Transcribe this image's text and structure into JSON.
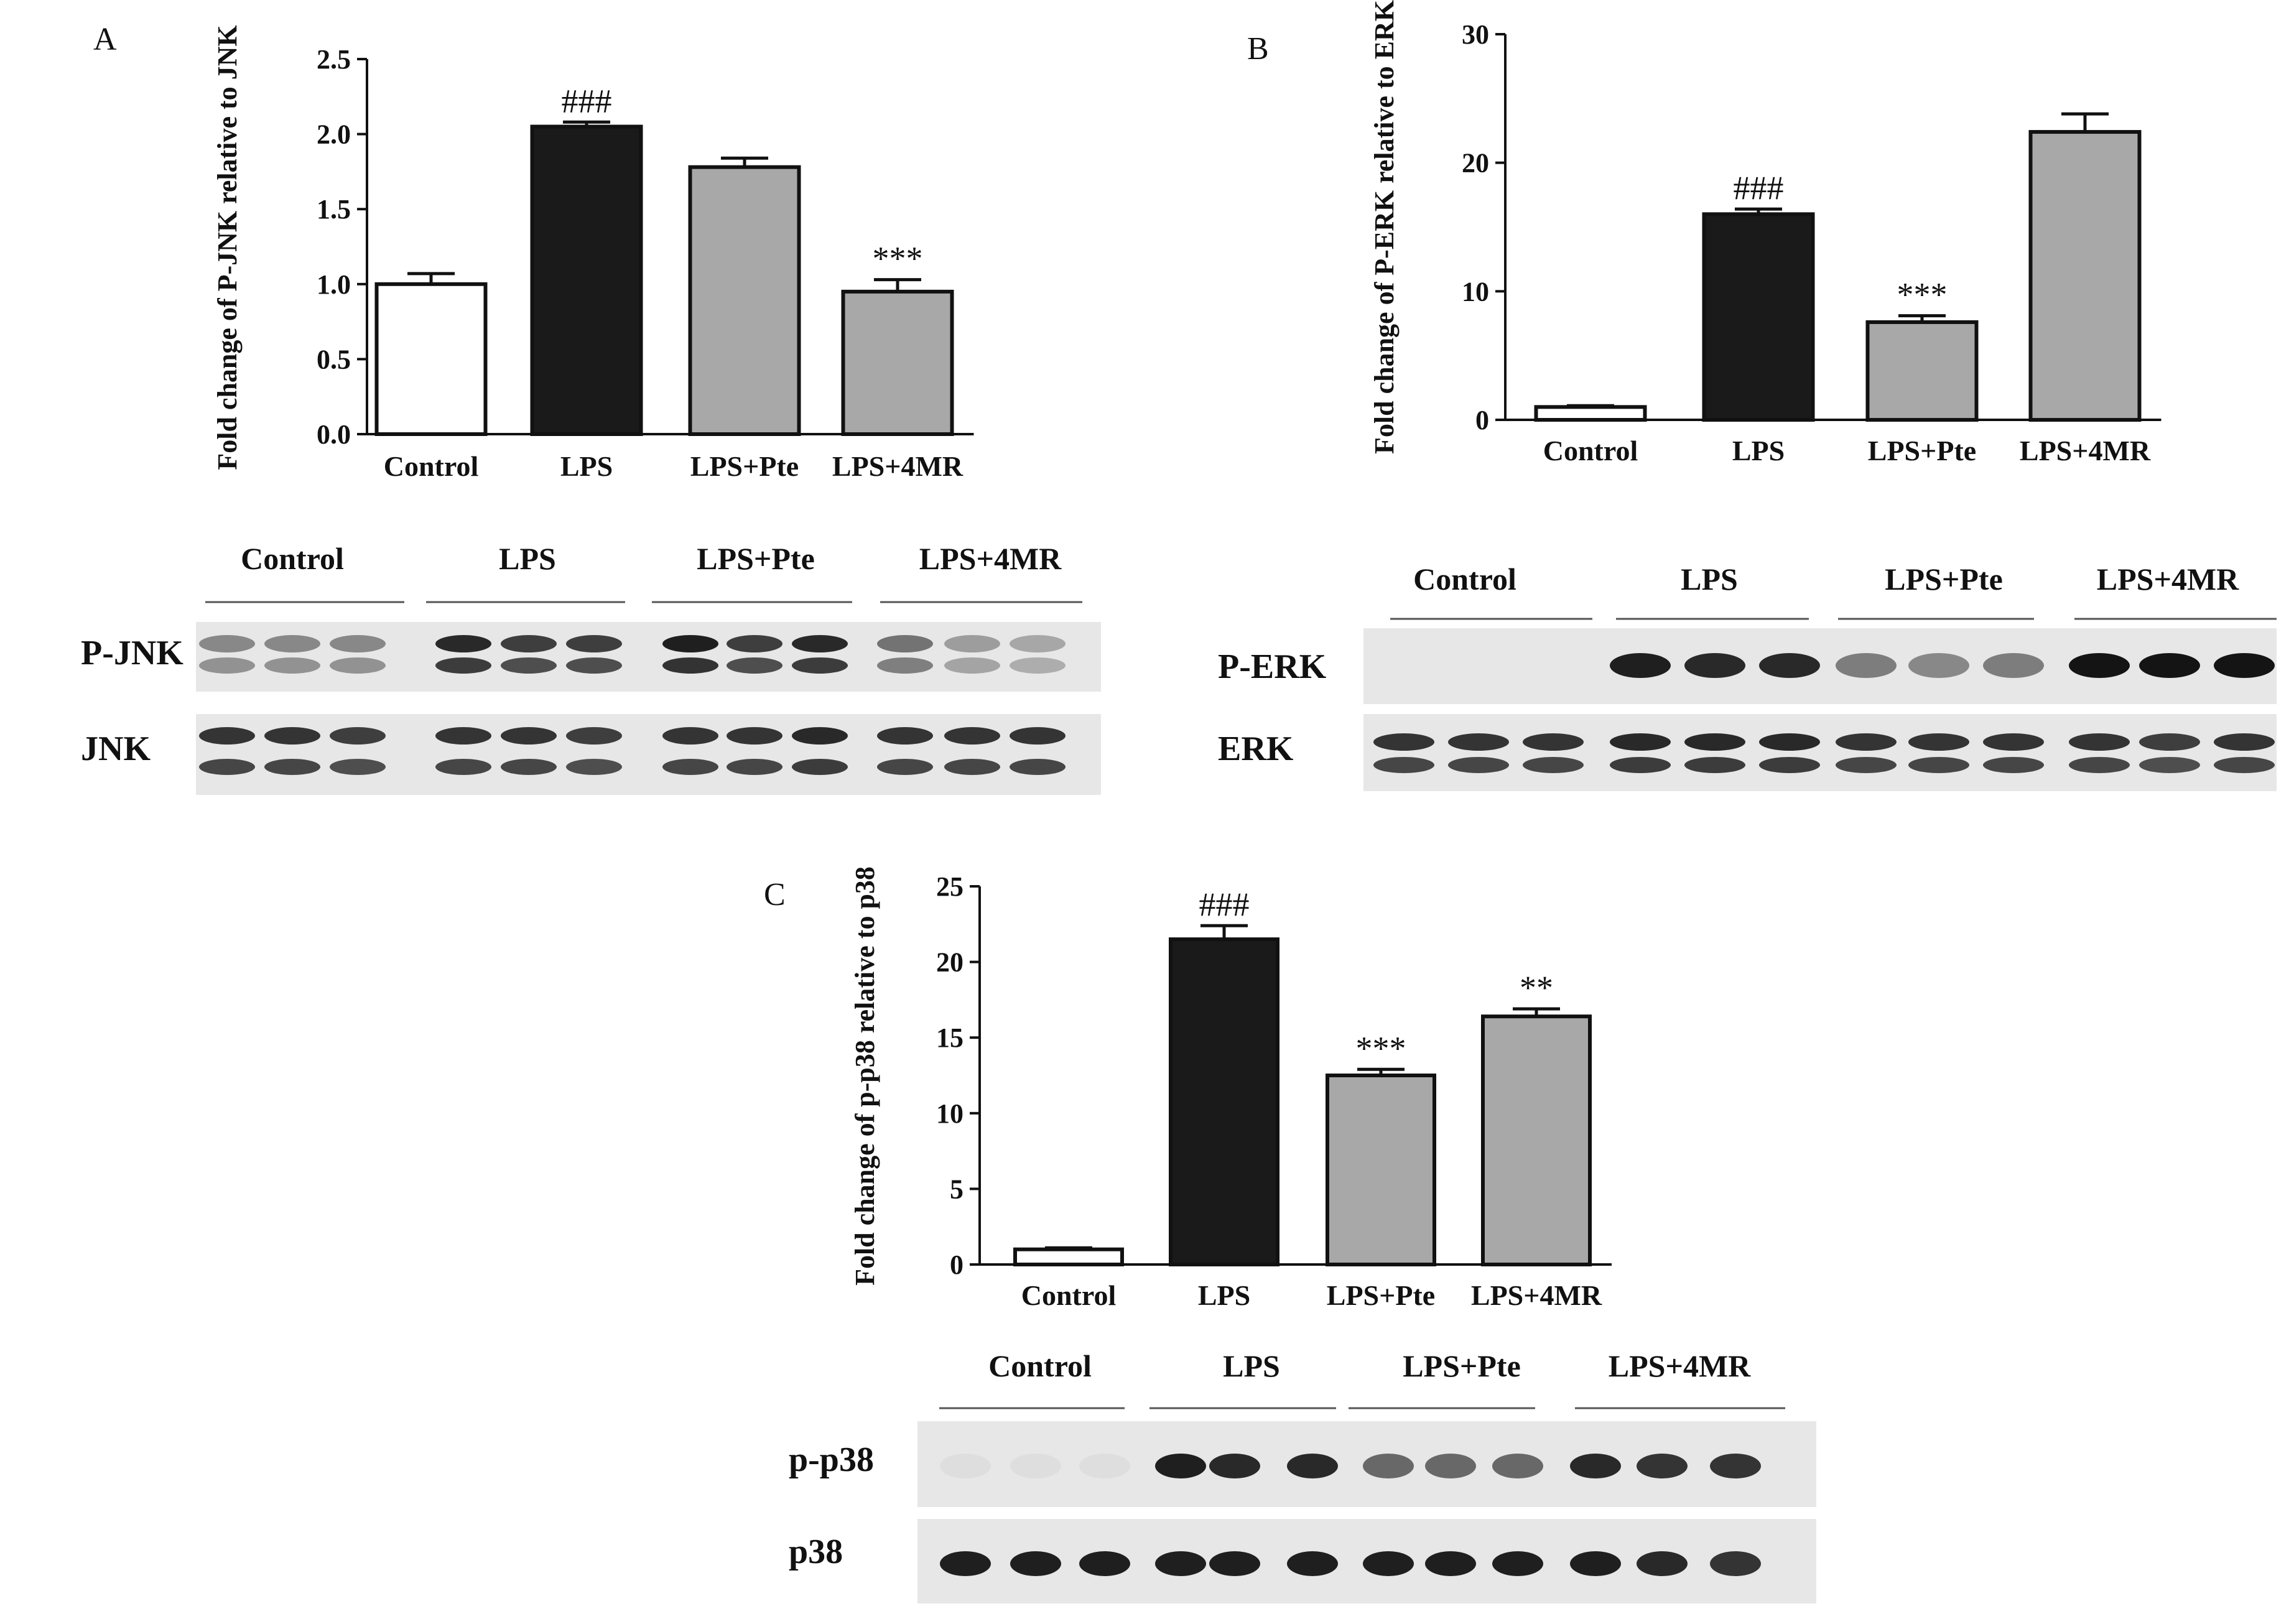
{
  "colors": {
    "Control": "#ffffff",
    "LPS": "#1a1a1a",
    "LPS+Pte": "#a8a8a8",
    "LPS+4MR": "#a8a8a8",
    "axis": "#111111",
    "blot_bg": "#e7e7e7",
    "band": "#141414"
  },
  "chart_data": [
    {
      "panel": "A",
      "type": "bar",
      "categories": [
        "Control",
        "LPS",
        "LPS+Pte",
        "LPS+4MR"
      ],
      "values": [
        1.0,
        2.05,
        1.78,
        0.95
      ],
      "errors": [
        0.07,
        0.03,
        0.06,
        0.08
      ],
      "annotations": [
        "",
        "###",
        "",
        "***"
      ],
      "ylabel": "Fold change of P-JNK relative to JNK",
      "xlabel": "",
      "ylim": [
        0,
        2.5
      ],
      "yticks": [
        "0.0",
        "0.5",
        "1.0",
        "1.5",
        "2.0",
        "2.5"
      ],
      "grid": false,
      "legend": "none"
    },
    {
      "panel": "B",
      "type": "bar",
      "categories": [
        "Control",
        "LPS",
        "LPS+Pte",
        "LPS+4MR"
      ],
      "values": [
        1.0,
        16.0,
        7.6,
        22.4
      ],
      "errors": [
        0.1,
        0.4,
        0.5,
        1.4
      ],
      "annotations": [
        "",
        "###",
        "***",
        ""
      ],
      "ylabel": "Fold change of P-ERK relative to ERK",
      "xlabel": "",
      "ylim": [
        0,
        30
      ],
      "yticks": [
        "0",
        "10",
        "20",
        "30"
      ],
      "grid": false,
      "legend": "none"
    },
    {
      "panel": "C",
      "type": "bar",
      "categories": [
        "Control",
        "LPS",
        "LPS+Pte",
        "LPS+4MR"
      ],
      "values": [
        1.0,
        21.5,
        12.5,
        16.4
      ],
      "errors": [
        0.1,
        0.9,
        0.4,
        0.5
      ],
      "annotations": [
        "",
        "###",
        "***",
        "**"
      ],
      "ylabel": "Fold change of p-p38 relative to p38",
      "xlabel": "",
      "ylim": [
        0,
        25
      ],
      "yticks": [
        "0",
        "5",
        "10",
        "15",
        "20",
        "25"
      ],
      "grid": false,
      "legend": "none"
    }
  ],
  "blots": [
    {
      "panel": "A",
      "groups": [
        "Control",
        "LPS",
        "LPS+Pte",
        "LPS+4MR"
      ],
      "rows": [
        {
          "label": "P-JNK",
          "intensities": [
            0.45,
            0.45,
            0.45,
            0.9,
            0.8,
            0.8,
            0.95,
            0.8,
            0.9,
            0.55,
            0.35,
            0.3
          ]
        },
        {
          "label": "JNK",
          "intensities": [
            0.85,
            0.85,
            0.8,
            0.85,
            0.85,
            0.8,
            0.85,
            0.85,
            0.9,
            0.85,
            0.85,
            0.85
          ]
        }
      ]
    },
    {
      "panel": "B",
      "groups": [
        "Control",
        "LPS",
        "LPS+Pte",
        "LPS+4MR"
      ],
      "rows": [
        {
          "label": "P-ERK",
          "intensities": [
            0.0,
            0.0,
            0.0,
            0.95,
            0.9,
            0.9,
            0.5,
            0.45,
            0.5,
            1.0,
            1.0,
            1.0
          ]
        },
        {
          "label": "ERK",
          "intensities": [
            0.85,
            0.85,
            0.85,
            0.9,
            0.9,
            0.9,
            0.85,
            0.85,
            0.85,
            0.85,
            0.8,
            0.85
          ]
        }
      ]
    },
    {
      "panel": "C",
      "groups": [
        "Control",
        "LPS",
        "LPS+Pte",
        "LPS+4MR"
      ],
      "rows": [
        {
          "label": "p-p38",
          "intensities": [
            0.04,
            0.04,
            0.04,
            0.95,
            0.9,
            0.9,
            0.6,
            0.6,
            0.6,
            0.9,
            0.85,
            0.85
          ]
        },
        {
          "label": "p38",
          "intensities": [
            0.95,
            0.95,
            0.95,
            0.95,
            0.95,
            0.95,
            0.95,
            0.95,
            0.95,
            0.95,
            0.9,
            0.85
          ]
        }
      ]
    }
  ]
}
